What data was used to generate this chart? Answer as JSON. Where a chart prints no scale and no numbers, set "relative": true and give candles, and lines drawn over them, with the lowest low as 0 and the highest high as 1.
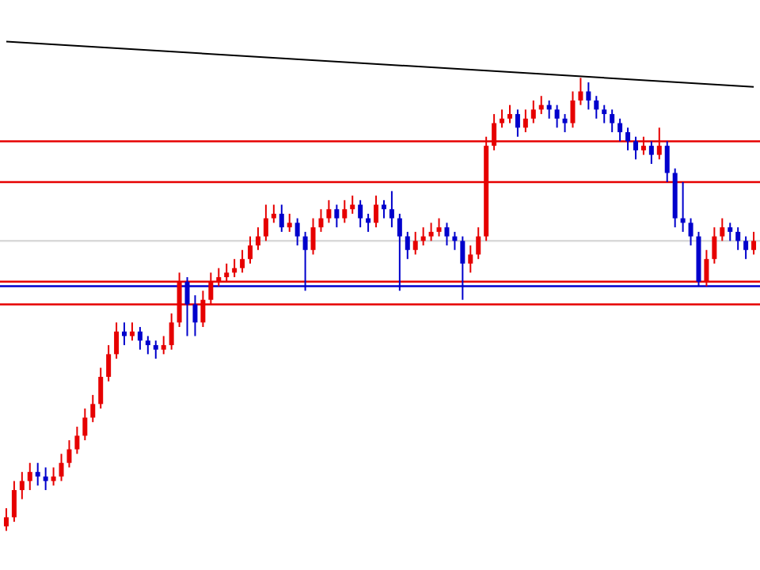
{
  "chart_data": {
    "type": "candlestick",
    "relative": true,
    "categories": [
      null,
      null,
      null,
      null,
      null,
      null,
      null,
      null,
      null,
      null,
      null,
      null,
      null,
      null,
      null,
      null,
      null,
      null,
      null,
      null,
      null,
      null,
      null,
      null,
      null,
      null,
      null,
      null,
      null,
      null,
      null,
      null,
      null,
      null,
      null,
      null,
      null,
      null,
      null,
      null,
      null,
      null,
      null,
      null,
      null,
      null,
      null,
      null,
      null,
      null,
      null,
      null,
      null,
      null,
      null,
      null,
      null,
      null,
      null,
      null,
      null,
      null,
      null,
      null,
      null,
      null,
      null,
      null,
      null,
      null,
      null,
      null,
      null,
      null,
      null,
      null,
      null,
      null,
      null,
      null,
      null,
      null,
      null,
      null,
      null,
      null,
      null,
      null,
      null,
      null,
      null,
      null,
      null,
      null,
      null,
      null
    ],
    "series": [
      {
        "ohlc": [
          [
            0.01,
            0.05,
            0,
            0.03
          ],
          [
            0.03,
            0.11,
            0.02,
            0.09
          ],
          [
            0.09,
            0.13,
            0.07,
            0.11
          ],
          [
            0.11,
            0.15,
            0.09,
            0.13
          ],
          [
            0.13,
            0.15,
            0.1,
            0.12
          ],
          [
            0.12,
            0.14,
            0.09,
            0.11
          ],
          [
            0.11,
            0.14,
            0.1,
            0.12
          ],
          [
            0.12,
            0.17,
            0.11,
            0.15
          ],
          [
            0.15,
            0.2,
            0.14,
            0.18
          ],
          [
            0.18,
            0.23,
            0.17,
            0.21
          ],
          [
            0.21,
            0.27,
            0.2,
            0.25
          ],
          [
            0.25,
            0.3,
            0.24,
            0.28
          ],
          [
            0.28,
            0.36,
            0.27,
            0.34
          ],
          [
            0.34,
            0.41,
            0.33,
            0.39
          ],
          [
            0.39,
            0.46,
            0.38,
            0.44
          ],
          [
            0.44,
            0.46,
            0.41,
            0.43
          ],
          [
            0.43,
            0.46,
            0.42,
            0.44
          ],
          [
            0.44,
            0.45,
            0.4,
            0.42
          ],
          [
            0.42,
            0.43,
            0.39,
            0.41
          ],
          [
            0.41,
            0.42,
            0.38,
            0.4
          ],
          [
            0.4,
            0.43,
            0.39,
            0.41
          ],
          [
            0.41,
            0.48,
            0.4,
            0.46
          ],
          [
            0.46,
            0.57,
            0.45,
            0.55
          ],
          [
            0.55,
            0.56,
            0.43,
            0.5
          ],
          [
            0.5,
            0.52,
            0.43,
            0.46
          ],
          [
            0.46,
            0.53,
            0.45,
            0.51
          ],
          [
            0.51,
            0.57,
            0.5,
            0.55
          ],
          [
            0.55,
            0.58,
            0.54,
            0.56
          ],
          [
            0.56,
            0.59,
            0.55,
            0.57
          ],
          [
            0.57,
            0.6,
            0.56,
            0.58
          ],
          [
            0.58,
            0.62,
            0.57,
            0.6
          ],
          [
            0.6,
            0.65,
            0.59,
            0.63
          ],
          [
            0.63,
            0.67,
            0.62,
            0.65
          ],
          [
            0.65,
            0.72,
            0.64,
            0.69
          ],
          [
            0.69,
            0.72,
            0.68,
            0.7
          ],
          [
            0.7,
            0.72,
            0.66,
            0.67
          ],
          [
            0.67,
            0.7,
            0.66,
            0.68
          ],
          [
            0.68,
            0.69,
            0.63,
            0.65
          ],
          [
            0.65,
            0.66,
            0.53,
            0.62
          ],
          [
            0.62,
            0.69,
            0.61,
            0.67
          ],
          [
            0.67,
            0.71,
            0.66,
            0.69
          ],
          [
            0.69,
            0.73,
            0.68,
            0.71
          ],
          [
            0.71,
            0.72,
            0.67,
            0.69
          ],
          [
            0.69,
            0.73,
            0.68,
            0.71
          ],
          [
            0.71,
            0.74,
            0.7,
            0.72
          ],
          [
            0.72,
            0.73,
            0.67,
            0.69
          ],
          [
            0.69,
            0.7,
            0.66,
            0.68
          ],
          [
            0.68,
            0.74,
            0.67,
            0.72
          ],
          [
            0.72,
            0.73,
            0.69,
            0.71
          ],
          [
            0.71,
            0.75,
            0.67,
            0.69
          ],
          [
            0.69,
            0.7,
            0.53,
            0.65
          ],
          [
            0.65,
            0.66,
            0.6,
            0.62
          ],
          [
            0.62,
            0.66,
            0.61,
            0.64
          ],
          [
            0.64,
            0.67,
            0.63,
            0.65
          ],
          [
            0.65,
            0.68,
            0.64,
            0.66
          ],
          [
            0.66,
            0.69,
            0.65,
            0.67
          ],
          [
            0.67,
            0.68,
            0.63,
            0.65
          ],
          [
            0.65,
            0.66,
            0.62,
            0.64
          ],
          [
            0.64,
            0.65,
            0.51,
            0.59
          ],
          [
            0.59,
            0.63,
            0.57,
            0.61
          ],
          [
            0.61,
            0.67,
            0.6,
            0.65
          ],
          [
            0.65,
            0.87,
            0.64,
            0.85
          ],
          [
            0.85,
            0.92,
            0.84,
            0.9
          ],
          [
            0.9,
            0.93,
            0.89,
            0.91
          ],
          [
            0.91,
            0.94,
            0.9,
            0.92
          ],
          [
            0.92,
            0.93,
            0.87,
            0.89
          ],
          [
            0.89,
            0.93,
            0.88,
            0.91
          ],
          [
            0.91,
            0.95,
            0.9,
            0.93
          ],
          [
            0.93,
            0.96,
            0.92,
            0.94
          ],
          [
            0.94,
            0.95,
            0.91,
            0.93
          ],
          [
            0.93,
            0.94,
            0.89,
            0.91
          ],
          [
            0.91,
            0.92,
            0.88,
            0.9
          ],
          [
            0.9,
            0.97,
            0.89,
            0.95
          ],
          [
            0.95,
            1,
            0.94,
            0.97
          ],
          [
            0.97,
            0.99,
            0.93,
            0.95
          ],
          [
            0.95,
            0.96,
            0.91,
            0.93
          ],
          [
            0.93,
            0.94,
            0.9,
            0.92
          ],
          [
            0.92,
            0.93,
            0.88,
            0.9
          ],
          [
            0.9,
            0.91,
            0.86,
            0.88
          ],
          [
            0.88,
            0.89,
            0.84,
            0.86
          ],
          [
            0.86,
            0.87,
            0.82,
            0.84
          ],
          [
            0.84,
            0.87,
            0.83,
            0.85
          ],
          [
            0.85,
            0.86,
            0.81,
            0.83
          ],
          [
            0.83,
            0.89,
            0.82,
            0.85
          ],
          [
            0.85,
            0.86,
            0.77,
            0.79
          ],
          [
            0.79,
            0.8,
            0.67,
            0.69
          ],
          [
            0.69,
            0.77,
            0.66,
            0.68
          ],
          [
            0.68,
            0.69,
            0.63,
            0.65
          ],
          [
            0.65,
            0.66,
            0.54,
            0.55
          ],
          [
            0.55,
            0.62,
            0.54,
            0.6
          ],
          [
            0.6,
            0.67,
            0.59,
            0.65
          ],
          [
            0.65,
            0.69,
            0.64,
            0.67
          ],
          [
            0.67,
            0.68,
            0.64,
            0.66
          ],
          [
            0.66,
            0.67,
            0.62,
            0.64
          ],
          [
            0.64,
            0.65,
            0.6,
            0.62
          ],
          [
            0.62,
            0.66,
            0.61,
            0.64
          ]
        ],
        "colors": [
          "#e60000",
          "#e60000",
          "#e60000",
          "#e60000",
          "#0000cc",
          "#0000cc",
          "#e60000",
          "#e60000",
          "#e60000",
          "#e60000",
          "#e60000",
          "#e60000",
          "#e60000",
          "#e60000",
          "#e60000",
          "#0000cc",
          "#e60000",
          "#0000cc",
          "#0000cc",
          "#0000cc",
          "#e60000",
          "#e60000",
          "#e60000",
          "#0000cc",
          "#0000cc",
          "#e60000",
          "#e60000",
          "#e60000",
          "#e60000",
          "#e60000",
          "#e60000",
          "#e60000",
          "#e60000",
          "#e60000",
          "#e60000",
          "#0000cc",
          "#e60000",
          "#0000cc",
          "#0000cc",
          "#e60000",
          "#e60000",
          "#e60000",
          "#0000cc",
          "#e60000",
          "#e60000",
          "#0000cc",
          "#0000cc",
          "#e60000",
          "#0000cc",
          "#0000cc",
          "#0000cc",
          "#0000cc",
          "#e60000",
          "#e60000",
          "#e60000",
          "#e60000",
          "#0000cc",
          "#0000cc",
          "#0000cc",
          "#e60000",
          "#e60000",
          "#e60000",
          "#e60000",
          "#e60000",
          "#e60000",
          "#0000cc",
          "#e60000",
          "#e60000",
          "#e60000",
          "#0000cc",
          "#0000cc",
          "#0000cc",
          "#e60000",
          "#e60000",
          "#0000cc",
          "#0000cc",
          "#0000cc",
          "#0000cc",
          "#0000cc",
          "#0000cc",
          "#0000cc",
          "#e60000",
          "#0000cc",
          "#e60000",
          "#0000cc",
          "#0000cc",
          "#0000cc",
          "#0000cc",
          "#0000cc",
          "#e60000",
          "#e60000",
          "#e60000",
          "#0000cc",
          "#0000cc",
          "#0000cc",
          "#e60000"
        ]
      },
      {
        "type": "line",
        "color": "#000000",
        "values": [
          1.08,
          null,
          null,
          null,
          null,
          null,
          null,
          null,
          null,
          null,
          null,
          null,
          null,
          null,
          null,
          null,
          null,
          null,
          null,
          null,
          null,
          null,
          null,
          null,
          null,
          null,
          null,
          null,
          null,
          null,
          null,
          null,
          null,
          null,
          null,
          null,
          null,
          null,
          null,
          null,
          null,
          null,
          null,
          null,
          null,
          null,
          null,
          null,
          null,
          null,
          null,
          null,
          null,
          null,
          null,
          null,
          null,
          null,
          null,
          null,
          null,
          null,
          null,
          null,
          null,
          null,
          null,
          null,
          null,
          null,
          null,
          null,
          null,
          null,
          null,
          null,
          null,
          null,
          null,
          null,
          null,
          null,
          null,
          null,
          null,
          null,
          null,
          null,
          null,
          null,
          null,
          null,
          null,
          null,
          null,
          0.98
        ]
      }
    ],
    "ref_lines": [
      {
        "axis": "y",
        "value": 0.86,
        "color": "#e60000"
      },
      {
        "axis": "y",
        "value": 0.77,
        "color": "#e60000"
      },
      {
        "axis": "y",
        "value": 0.64,
        "color": "#d9d9d9"
      },
      {
        "axis": "y",
        "value": 0.55,
        "color": "#e60000"
      },
      {
        "axis": "y",
        "value": 0.54,
        "color": "#0000cc"
      },
      {
        "axis": "y",
        "value": 0.5,
        "color": "#e60000"
      }
    ]
  }
}
